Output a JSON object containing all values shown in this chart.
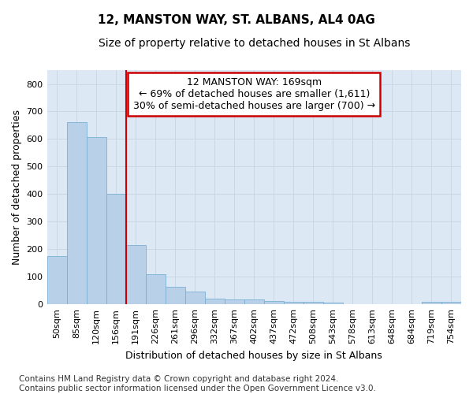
{
  "title": "12, MANSTON WAY, ST. ALBANS, AL4 0AG",
  "subtitle": "Size of property relative to detached houses in St Albans",
  "xlabel": "Distribution of detached houses by size in St Albans",
  "ylabel": "Number of detached properties",
  "bar_labels": [
    "50sqm",
    "85sqm",
    "120sqm",
    "156sqm",
    "191sqm",
    "226sqm",
    "261sqm",
    "296sqm",
    "332sqm",
    "367sqm",
    "402sqm",
    "437sqm",
    "472sqm",
    "508sqm",
    "543sqm",
    "578sqm",
    "613sqm",
    "648sqm",
    "684sqm",
    "719sqm",
    "754sqm"
  ],
  "bar_values": [
    175,
    660,
    607,
    401,
    215,
    110,
    63,
    47,
    20,
    17,
    17,
    13,
    8,
    8,
    7,
    0,
    0,
    0,
    0,
    8,
    8
  ],
  "bar_color": "#b8d0e8",
  "bar_edge_color": "#7aafd4",
  "vline_x": 3.5,
  "vline_color": "#cc0000",
  "annotation_text": "12 MANSTON WAY: 169sqm\n← 69% of detached houses are smaller (1,611)\n30% of semi-detached houses are larger (700) →",
  "annotation_box_color": "#ffffff",
  "annotation_box_edge": "#cc0000",
  "ylim": [
    0,
    850
  ],
  "yticks": [
    0,
    100,
    200,
    300,
    400,
    500,
    600,
    700,
    800
  ],
  "grid_color": "#c8d4e4",
  "background_color": "#dde8f5",
  "fig_background": "#ffffff",
  "footer": "Contains HM Land Registry data © Crown copyright and database right 2024.\nContains public sector information licensed under the Open Government Licence v3.0.",
  "title_fontsize": 11,
  "subtitle_fontsize": 10,
  "xlabel_fontsize": 9,
  "ylabel_fontsize": 9,
  "tick_fontsize": 8,
  "annotation_fontsize": 9,
  "footer_fontsize": 7.5
}
